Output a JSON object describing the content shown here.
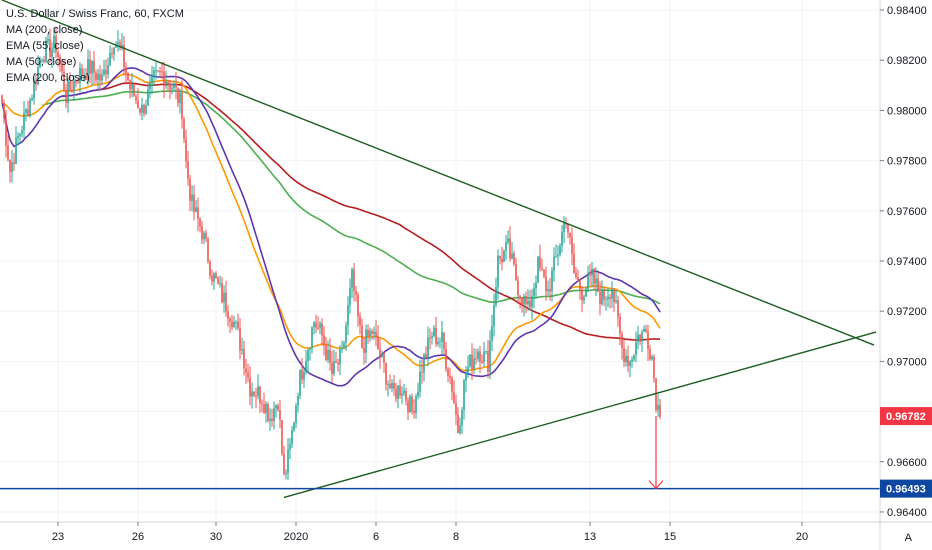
{
  "header": {
    "title": "U.S. Dollar / Swiss Franc, 60, FXCM",
    "indicators": [
      "MA (200, close)",
      "EMA (55, close)",
      "MA (50, close)",
      "EMA (200, close)"
    ]
  },
  "corner_label": "A",
  "colors": {
    "bull": "#26a69a",
    "bear": "#ef5350",
    "trend": "#1b5e20",
    "hline": "#0d47a1",
    "ma200": "#b71c1c",
    "ema55": "#ff9800",
    "ma50": "#5e35b1",
    "ema200": "#4caf50",
    "price_badge": "#f23645",
    "level_badge": "#0d47a1"
  },
  "chart_data": {
    "type": "candlestick",
    "ylim": [
      0.9636,
      0.9844
    ],
    "y_ticks": [
      "0.98400",
      "0.98200",
      "0.98000",
      "0.97800",
      "0.97600",
      "0.97400",
      "0.97200",
      "0.97000",
      "0.96800",
      "0.96600",
      "0.96400"
    ],
    "y_tick_values": [
      0.984,
      0.982,
      0.98,
      0.978,
      0.976,
      0.974,
      0.972,
      0.97,
      0.968,
      0.966,
      0.964
    ],
    "x_ticks": [
      "23",
      "26",
      "30",
      "2020",
      "6",
      "8",
      "13",
      "15",
      "20"
    ],
    "x_tick_index": [
      28,
      68,
      107,
      147,
      187,
      227,
      294,
      334,
      400
    ],
    "price_label": "0.96782",
    "price_value": 0.96782,
    "level_label": "0.96493",
    "level_value": 0.96493,
    "anchors": [
      [
        0,
        0.9803
      ],
      [
        4,
        0.9776
      ],
      [
        8,
        0.9789
      ],
      [
        14,
        0.9804
      ],
      [
        20,
        0.9823
      ],
      [
        27,
        0.9826
      ],
      [
        32,
        0.9806
      ],
      [
        38,
        0.9814
      ],
      [
        44,
        0.9817
      ],
      [
        50,
        0.9812
      ],
      [
        56,
        0.9829
      ],
      [
        60,
        0.9822
      ],
      [
        64,
        0.9809
      ],
      [
        70,
        0.98
      ],
      [
        76,
        0.9812
      ],
      [
        80,
        0.9815
      ],
      [
        86,
        0.9809
      ],
      [
        90,
        0.9801
      ],
      [
        92,
        0.9779
      ],
      [
        95,
        0.9762
      ],
      [
        100,
        0.9752
      ],
      [
        105,
        0.9735
      ],
      [
        110,
        0.9726
      ],
      [
        115,
        0.9718
      ],
      [
        120,
        0.9705
      ],
      [
        124,
        0.969
      ],
      [
        130,
        0.9686
      ],
      [
        134,
        0.9678
      ],
      [
        138,
        0.9685
      ],
      [
        141,
        0.9653
      ],
      [
        144,
        0.9665
      ],
      [
        148,
        0.969
      ],
      [
        152,
        0.9703
      ],
      [
        156,
        0.9716
      ],
      [
        160,
        0.971
      ],
      [
        165,
        0.9695
      ],
      [
        170,
        0.9702
      ],
      [
        175,
        0.9733
      ],
      [
        180,
        0.9706
      ],
      [
        185,
        0.9712
      ],
      [
        190,
        0.97
      ],
      [
        195,
        0.9687
      ],
      [
        200,
        0.969
      ],
      [
        205,
        0.968
      ],
      [
        210,
        0.9698
      ],
      [
        215,
        0.9711
      ],
      [
        220,
        0.9708
      ],
      [
        225,
        0.969
      ],
      [
        228,
        0.9673
      ],
      [
        232,
        0.9696
      ],
      [
        238,
        0.9705
      ],
      [
        243,
        0.97
      ],
      [
        248,
        0.974
      ],
      [
        253,
        0.9745
      ],
      [
        258,
        0.973
      ],
      [
        263,
        0.972
      ],
      [
        268,
        0.9738
      ],
      [
        273,
        0.9728
      ],
      [
        278,
        0.9744
      ],
      [
        282,
        0.9758
      ],
      [
        286,
        0.9735
      ],
      [
        290,
        0.9728
      ],
      [
        295,
        0.9733
      ],
      [
        300,
        0.9725
      ],
      [
        305,
        0.973
      ],
      [
        310,
        0.9705
      ],
      [
        314,
        0.97
      ],
      [
        318,
        0.971
      ],
      [
        322,
        0.9712
      ],
      [
        325,
        0.9702
      ],
      [
        327,
        0.9685
      ],
      [
        329,
        0.9678
      ]
    ],
    "lines": {
      "resistance": [
        [
          0.0,
          0.9844
        ],
        [
          436.0,
          0.97065
        ]
      ],
      "support": [
        [
          141.0,
          0.96458
        ],
        [
          437.0,
          0.97117
        ]
      ]
    },
    "target": {
      "from": [
        327.0,
        0.96782
      ],
      "to": [
        327.0,
        0.96493
      ]
    }
  }
}
